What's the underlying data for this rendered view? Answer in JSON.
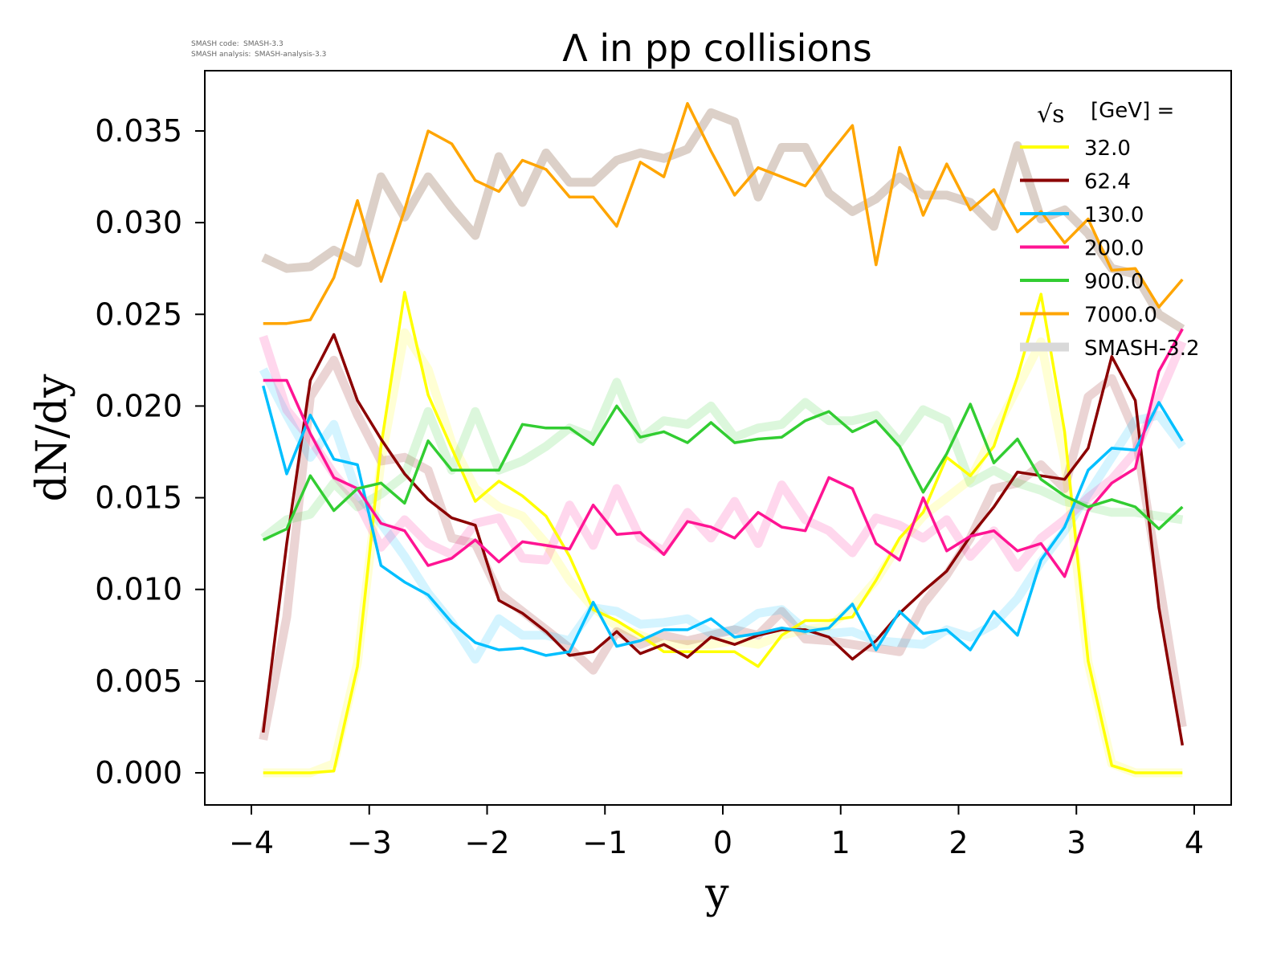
{
  "meta": {
    "code_label": "SMASH code:",
    "code_value": "SMASH-3.3",
    "analysis_label": "SMASH analysis:",
    "analysis_value": "SMASH-analysis-3.3"
  },
  "chart_data": {
    "type": "line",
    "title": "Λ in pp collisions",
    "xlabel": "y",
    "ylabel": "dN/dy",
    "xlim": [
      -4.3,
      4.3
    ],
    "ylim": [
      -0.0018,
      0.0382
    ],
    "xticks": [
      -4,
      -3,
      -2,
      -1,
      0,
      1,
      2,
      3,
      4
    ],
    "xtick_labels": [
      "−4",
      "−3",
      "−2",
      "−1",
      "0",
      "1",
      "2",
      "3",
      "4"
    ],
    "yticks": [
      0.0,
      0.005,
      0.01,
      0.015,
      0.02,
      0.025,
      0.03,
      0.035
    ],
    "ytick_labels": [
      "0.000",
      "0.005",
      "0.010",
      "0.015",
      "0.020",
      "0.025",
      "0.030",
      "0.035"
    ],
    "grid": false,
    "legend": {
      "title_symbol": "√s",
      "title_text": "[GeV] =",
      "placement": "top-right",
      "reference_label": "SMASH-3.2",
      "reference_color": "#d9d9d9"
    },
    "x": [
      -3.9,
      -3.7,
      -3.5,
      -3.3,
      -3.1,
      -2.9,
      -2.7,
      -2.5,
      -2.3,
      -2.1,
      -1.9,
      -1.7,
      -1.5,
      -1.3,
      -1.1,
      -0.9,
      -0.7,
      -0.5,
      -0.3,
      -0.1,
      0.1,
      0.3,
      0.5,
      0.7,
      0.9,
      1.1,
      1.3,
      1.5,
      1.7,
      1.9,
      2.1,
      2.3,
      2.5,
      2.7,
      2.9,
      3.1,
      3.3,
      3.5,
      3.7,
      3.9
    ],
    "series": [
      {
        "name": "32.0",
        "color": "#ffff00",
        "values": [
          0.0,
          0.0,
          0.0,
          0.0001,
          0.0058,
          0.0178,
          0.0262,
          0.0206,
          0.0177,
          0.0148,
          0.0159,
          0.0151,
          0.014,
          0.0118,
          0.0089,
          0.0083,
          0.0075,
          0.0066,
          0.0066,
          0.0066,
          0.0066,
          0.0058,
          0.0075,
          0.0083,
          0.0083,
          0.0085,
          0.0105,
          0.0128,
          0.0142,
          0.0172,
          0.0162,
          0.0178,
          0.0216,
          0.0261,
          0.0186,
          0.0061,
          0.0004,
          0.0,
          0.0,
          0.0
        ],
        "reference": [
          0.0,
          0.0,
          0.0,
          0.0005,
          0.006,
          0.017,
          0.024,
          0.022,
          0.018,
          0.0155,
          0.0145,
          0.014,
          0.0125,
          0.0105,
          0.009,
          0.008,
          0.0075,
          0.007,
          0.007,
          0.007,
          0.0072,
          0.007,
          0.0075,
          0.0078,
          0.008,
          0.009,
          0.0105,
          0.0125,
          0.014,
          0.015,
          0.016,
          0.0185,
          0.021,
          0.0235,
          0.017,
          0.006,
          0.0005,
          0.0,
          0.0,
          0.0
        ]
      },
      {
        "name": "62.4",
        "color": "#8b0000",
        "values": [
          0.0022,
          0.0125,
          0.0214,
          0.0239,
          0.0203,
          0.0182,
          0.0163,
          0.0149,
          0.0139,
          0.0135,
          0.0094,
          0.0087,
          0.0077,
          0.0064,
          0.0066,
          0.0077,
          0.0065,
          0.007,
          0.0063,
          0.0074,
          0.007,
          0.0075,
          0.0078,
          0.0078,
          0.0074,
          0.0062,
          0.0072,
          0.0087,
          0.0099,
          0.011,
          0.0129,
          0.0145,
          0.0164,
          0.0162,
          0.016,
          0.0177,
          0.0227,
          0.0203,
          0.009,
          0.0015
        ],
        "reference": [
          0.0018,
          0.0085,
          0.0205,
          0.0225,
          0.0195,
          0.017,
          0.0172,
          0.0165,
          0.0128,
          0.0125,
          0.0098,
          0.0088,
          0.0078,
          0.0068,
          0.0056,
          0.0077,
          0.007,
          0.0075,
          0.0072,
          0.0075,
          0.0078,
          0.0075,
          0.0088,
          0.0073,
          0.0072,
          0.007,
          0.0068,
          0.0066,
          0.0092,
          0.0108,
          0.0128,
          0.0155,
          0.0158,
          0.0168,
          0.0155,
          0.0205,
          0.0215,
          0.0185,
          0.0105,
          0.0025
        ]
      },
      {
        "name": "130.0",
        "color": "#00bfff",
        "values": [
          0.0211,
          0.0163,
          0.0195,
          0.0171,
          0.0168,
          0.0113,
          0.0104,
          0.0097,
          0.0082,
          0.0071,
          0.0067,
          0.0068,
          0.0064,
          0.0066,
          0.0093,
          0.0069,
          0.0072,
          0.0078,
          0.0078,
          0.0084,
          0.0074,
          0.0076,
          0.0079,
          0.0077,
          0.0079,
          0.0092,
          0.0067,
          0.0088,
          0.0076,
          0.0078,
          0.0067,
          0.0088,
          0.0075,
          0.0116,
          0.0134,
          0.0165,
          0.0177,
          0.0176,
          0.0202,
          0.0181
        ],
        "reference": [
          0.022,
          0.0195,
          0.0172,
          0.019,
          0.0152,
          0.0136,
          0.0118,
          0.0098,
          0.0082,
          0.0062,
          0.0084,
          0.0075,
          0.0075,
          0.0072,
          0.009,
          0.0088,
          0.0081,
          0.0082,
          0.0084,
          0.0076,
          0.0078,
          0.0087,
          0.0089,
          0.0078,
          0.0076,
          0.0077,
          0.0072,
          0.0071,
          0.007,
          0.0078,
          0.0074,
          0.0081,
          0.0095,
          0.0115,
          0.0132,
          0.0152,
          0.0172,
          0.0192,
          0.0195,
          0.0178
        ]
      },
      {
        "name": "200.0",
        "color": "#ff1493",
        "values": [
          0.0214,
          0.0214,
          0.0185,
          0.0161,
          0.0155,
          0.0136,
          0.0132,
          0.0113,
          0.0117,
          0.0127,
          0.0115,
          0.0126,
          0.0124,
          0.0122,
          0.0146,
          0.013,
          0.0131,
          0.0119,
          0.0137,
          0.0134,
          0.0128,
          0.0142,
          0.0134,
          0.0132,
          0.0161,
          0.0155,
          0.0125,
          0.0116,
          0.015,
          0.0121,
          0.0129,
          0.0132,
          0.0121,
          0.0125,
          0.0107,
          0.0143,
          0.0158,
          0.0166,
          0.0219,
          0.0242
        ],
        "reference": [
          0.0238,
          0.0198,
          0.0182,
          0.0163,
          0.0148,
          0.0123,
          0.0138,
          0.0125,
          0.0119,
          0.0136,
          0.0139,
          0.0117,
          0.0116,
          0.0146,
          0.0124,
          0.0155,
          0.0128,
          0.0121,
          0.0142,
          0.0128,
          0.0148,
          0.0125,
          0.0157,
          0.0138,
          0.0132,
          0.012,
          0.0139,
          0.0135,
          0.0128,
          0.0138,
          0.0118,
          0.0132,
          0.0112,
          0.0128,
          0.0138,
          0.015,
          0.016,
          0.0175,
          0.0205,
          0.0235
        ]
      },
      {
        "name": "900.0",
        "color": "#32cd32",
        "values": [
          0.0127,
          0.0133,
          0.0162,
          0.0143,
          0.0155,
          0.0158,
          0.0147,
          0.0181,
          0.0165,
          0.0165,
          0.0165,
          0.019,
          0.0188,
          0.0188,
          0.0179,
          0.02,
          0.0183,
          0.0186,
          0.018,
          0.0191,
          0.018,
          0.0182,
          0.0183,
          0.0192,
          0.0197,
          0.0186,
          0.0192,
          0.0178,
          0.0153,
          0.0174,
          0.0201,
          0.0169,
          0.0182,
          0.016,
          0.0151,
          0.0145,
          0.0149,
          0.0145,
          0.0133,
          0.0145
        ],
        "reference": [
          0.0128,
          0.0138,
          0.0141,
          0.0158,
          0.0145,
          0.0152,
          0.0162,
          0.0197,
          0.0165,
          0.0197,
          0.0165,
          0.017,
          0.0178,
          0.0188,
          0.0183,
          0.0213,
          0.0182,
          0.0192,
          0.019,
          0.02,
          0.0183,
          0.0188,
          0.019,
          0.0202,
          0.0192,
          0.0192,
          0.0195,
          0.018,
          0.0198,
          0.0192,
          0.0158,
          0.0165,
          0.0158,
          0.0154,
          0.0148,
          0.0145,
          0.0142,
          0.0142,
          0.014,
          0.0138
        ]
      },
      {
        "name": "7000.0",
        "color": "#ffa500",
        "values": [
          0.0245,
          0.0245,
          0.0247,
          0.027,
          0.0312,
          0.0268,
          0.0307,
          0.035,
          0.0343,
          0.0323,
          0.0317,
          0.0334,
          0.0329,
          0.0314,
          0.0314,
          0.0298,
          0.0333,
          0.0325,
          0.0365,
          0.0339,
          0.0315,
          0.033,
          0.0325,
          0.032,
          0.0337,
          0.0353,
          0.0277,
          0.0341,
          0.0304,
          0.0332,
          0.0307,
          0.0318,
          0.0295,
          0.0306,
          0.0289,
          0.0302,
          0.0274,
          0.0275,
          0.0254,
          0.0269
        ],
        "reference": [
          0.0281,
          0.0275,
          0.0276,
          0.0285,
          0.0278,
          0.0325,
          0.0303,
          0.0325,
          0.0308,
          0.0293,
          0.0336,
          0.0311,
          0.0338,
          0.0322,
          0.0322,
          0.0334,
          0.0338,
          0.0335,
          0.034,
          0.036,
          0.0355,
          0.0314,
          0.0341,
          0.0341,
          0.0316,
          0.0306,
          0.0313,
          0.0325,
          0.0315,
          0.0315,
          0.0311,
          0.0298,
          0.0342,
          0.0302,
          0.0307,
          0.0294,
          0.0275,
          0.0272,
          0.025,
          0.0242
        ]
      }
    ]
  }
}
